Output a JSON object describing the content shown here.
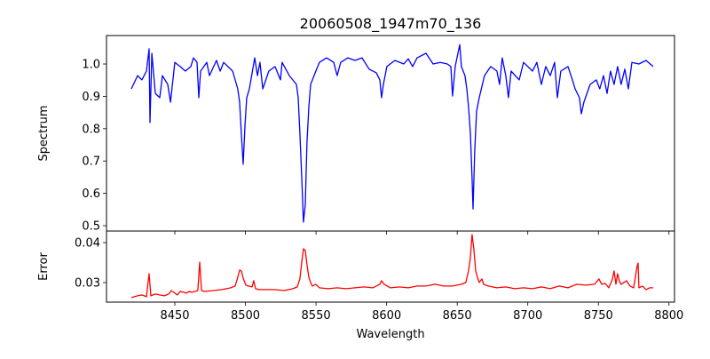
{
  "chart_data": [
    {
      "type": "line",
      "title": "20060508_1947m70_136",
      "xlabel": "",
      "ylabel": "Spectrum",
      "xlim": [
        8401.6,
        8803.9
      ],
      "ylim": [
        0.4835,
        1.088
      ],
      "yticks": [
        "0.5",
        "0.6",
        "0.7",
        "0.8",
        "0.9",
        "1.0"
      ],
      "grid": false,
      "color": "#0000ff",
      "x": [
        8419.2,
        8423.6,
        8426.7,
        8429.9,
        8431.8,
        8432.4,
        8433.7,
        8436.2,
        8439.3,
        8441.2,
        8445.0,
        8446.9,
        8450.0,
        8453.8,
        8457.5,
        8461.3,
        8463.2,
        8465.7,
        8467.0,
        8468.2,
        8472.6,
        8474.5,
        8479.5,
        8482.1,
        8484.6,
        8490.9,
        8494.6,
        8495.9,
        8497.1,
        8498.4,
        8499.7,
        8500.9,
        8502.8,
        8506.6,
        8508.5,
        8510.3,
        8512.3,
        8516.6,
        8521.0,
        8524.8,
        8526.0,
        8531.1,
        8536.1,
        8537.4,
        8538.6,
        8539.9,
        8541.1,
        8542.4,
        8543.6,
        8544.9,
        8546.2,
        8549.9,
        8552.4,
        8557.5,
        8562.5,
        8565.0,
        8567.5,
        8572.6,
        8577.6,
        8582.6,
        8587.6,
        8592.7,
        8595.2,
        8596.4,
        8597.7,
        8600.2,
        8605.9,
        8612.2,
        8615.3,
        8618.4,
        8621.6,
        8627.9,
        8632.9,
        8638.0,
        8643.0,
        8645.5,
        8646.7,
        8648.6,
        8651.8,
        8653.0,
        8655.5,
        8656.8,
        8658.0,
        8659.3,
        8660.5,
        8661.2,
        8662.4,
        8663.7,
        8665.6,
        8669.3,
        8673.7,
        8678.1,
        8680.0,
        8681.9,
        8684.4,
        8686.3,
        8688.2,
        8693.9,
        8697.0,
        8703.3,
        8706.4,
        8709.6,
        8712.7,
        8715.9,
        8719.0,
        8720.9,
        8723.4,
        8728.5,
        8731.6,
        8733.5,
        8736.6,
        8737.9,
        8739.7,
        8744.1,
        8748.5,
        8751.0,
        8753.6,
        8756.1,
        8758.6,
        8761.1,
        8763.6,
        8766.1,
        8768.7,
        8771.2,
        8773.7,
        8778.7,
        8783.7,
        8788.8
      ],
      "y": [
        0.923,
        0.964,
        0.951,
        0.978,
        1.047,
        0.819,
        1.033,
        0.909,
        0.896,
        0.964,
        0.937,
        0.882,
        1.005,
        0.992,
        0.978,
        0.992,
        1.019,
        1.005,
        0.896,
        0.978,
        1.005,
        0.964,
        1.011,
        0.978,
        1.005,
        0.978,
        0.923,
        0.882,
        0.786,
        0.69,
        0.813,
        0.896,
        0.923,
        1.019,
        0.964,
        1.005,
        0.923,
        0.978,
        0.992,
        0.951,
        1.005,
        0.964,
        0.937,
        0.896,
        0.786,
        0.648,
        0.511,
        0.566,
        0.758,
        0.868,
        0.937,
        0.978,
        1.005,
        1.019,
        1.005,
        0.964,
        1.005,
        1.019,
        1.011,
        1.019,
        0.984,
        0.973,
        0.951,
        0.896,
        0.937,
        0.992,
        1.011,
        1.0,
        1.016,
        0.992,
        1.019,
        1.033,
        1.0,
        1.005,
        1.0,
        0.992,
        0.901,
        0.992,
        1.06,
        0.992,
        0.964,
        0.923,
        0.868,
        0.786,
        0.648,
        0.552,
        0.731,
        0.854,
        0.896,
        0.964,
        0.992,
        0.978,
        0.937,
        1.019,
        0.964,
        0.896,
        0.978,
        0.951,
        1.005,
        0.978,
        1.005,
        0.937,
        0.992,
        0.964,
        1.005,
        0.896,
        0.978,
        0.992,
        0.951,
        0.923,
        0.896,
        0.846,
        0.882,
        0.937,
        0.951,
        0.923,
        0.964,
        0.909,
        0.978,
        0.937,
        0.992,
        0.937,
        0.984,
        0.923,
        1.005,
        1.0,
        1.011,
        0.992
      ]
    },
    {
      "type": "line",
      "title": "",
      "xlabel": "Wavelength",
      "ylabel": "Error",
      "xlim": [
        8401.6,
        8803.9
      ],
      "ylim": [
        0.0251,
        0.0429
      ],
      "xticks": [
        "8450",
        "8500",
        "8550",
        "8600",
        "8650",
        "8700",
        "8750",
        "8800"
      ],
      "yticks": [
        "0.03",
        "0.04"
      ],
      "grid": false,
      "color": "#ff0000",
      "x": [
        8419.2,
        8423.6,
        8426.7,
        8429.9,
        8431.8,
        8433.0,
        8436.2,
        8439.3,
        8442.5,
        8445.6,
        8447.5,
        8450.0,
        8451.9,
        8453.8,
        8456.3,
        8458.2,
        8460.1,
        8461.9,
        8464.5,
        8466.3,
        8467.6,
        8468.9,
        8470.7,
        8477.0,
        8483.3,
        8486.5,
        8489.6,
        8492.7,
        8494.6,
        8495.9,
        8497.1,
        8498.4,
        8500.3,
        8502.2,
        8504.7,
        8505.9,
        8507.2,
        8509.7,
        8514.7,
        8521.0,
        8527.3,
        8533.6,
        8536.7,
        8538.6,
        8539.9,
        8541.1,
        8542.4,
        8543.6,
        8544.9,
        8546.2,
        8547.4,
        8549.9,
        8552.4,
        8558.7,
        8565.0,
        8571.3,
        8577.6,
        8583.9,
        8590.2,
        8595.2,
        8596.4,
        8598.3,
        8602.7,
        8609.0,
        8615.3,
        8621.6,
        8627.9,
        8634.2,
        8640.4,
        8646.7,
        8653.0,
        8656.1,
        8658.0,
        8659.3,
        8660.5,
        8661.8,
        8663.1,
        8664.3,
        8665.6,
        8667.5,
        8668.7,
        8671.9,
        8678.1,
        8684.4,
        8690.7,
        8697.0,
        8703.3,
        8709.6,
        8715.9,
        8722.2,
        8728.5,
        8734.7,
        8741.0,
        8747.3,
        8750.4,
        8752.3,
        8754.8,
        8757.3,
        8759.8,
        8761.1,
        8762.4,
        8763.6,
        8764.9,
        8766.1,
        8769.9,
        8772.4,
        8774.9,
        8776.2,
        8777.4,
        8778.1,
        8778.7,
        8781.2,
        8783.7,
        8786.3,
        8788.8
      ],
      "y": [
        0.02623,
        0.02667,
        0.0269,
        0.02646,
        0.03223,
        0.02667,
        0.02712,
        0.0269,
        0.02667,
        0.02712,
        0.028,
        0.02735,
        0.0269,
        0.02779,
        0.02757,
        0.02735,
        0.02779,
        0.02757,
        0.02779,
        0.028,
        0.03512,
        0.028,
        0.02779,
        0.028,
        0.02823,
        0.02846,
        0.02868,
        0.02912,
        0.03134,
        0.03312,
        0.0329,
        0.03112,
        0.02934,
        0.02912,
        0.0289,
        0.03046,
        0.02846,
        0.02823,
        0.02823,
        0.02823,
        0.028,
        0.02846,
        0.0289,
        0.0309,
        0.03512,
        0.03845,
        0.038,
        0.03445,
        0.03134,
        0.03001,
        0.02912,
        0.02957,
        0.02868,
        0.02846,
        0.02868,
        0.02846,
        0.02868,
        0.0289,
        0.02868,
        0.02957,
        0.03046,
        0.02957,
        0.02868,
        0.0289,
        0.02868,
        0.02912,
        0.02912,
        0.02957,
        0.02912,
        0.02912,
        0.02957,
        0.03001,
        0.0329,
        0.03623,
        0.042,
        0.03845,
        0.0329,
        0.03134,
        0.03001,
        0.0309,
        0.02957,
        0.02912,
        0.02868,
        0.0289,
        0.02846,
        0.02868,
        0.02846,
        0.0289,
        0.02846,
        0.02912,
        0.02868,
        0.02957,
        0.02934,
        0.02957,
        0.0309,
        0.02957,
        0.02979,
        0.02868,
        0.03068,
        0.0329,
        0.02957,
        0.03223,
        0.03023,
        0.02957,
        0.03046,
        0.02912,
        0.02868,
        0.03134,
        0.034,
        0.03489,
        0.02868,
        0.02912,
        0.02823,
        0.02868,
        0.02868
      ]
    }
  ]
}
